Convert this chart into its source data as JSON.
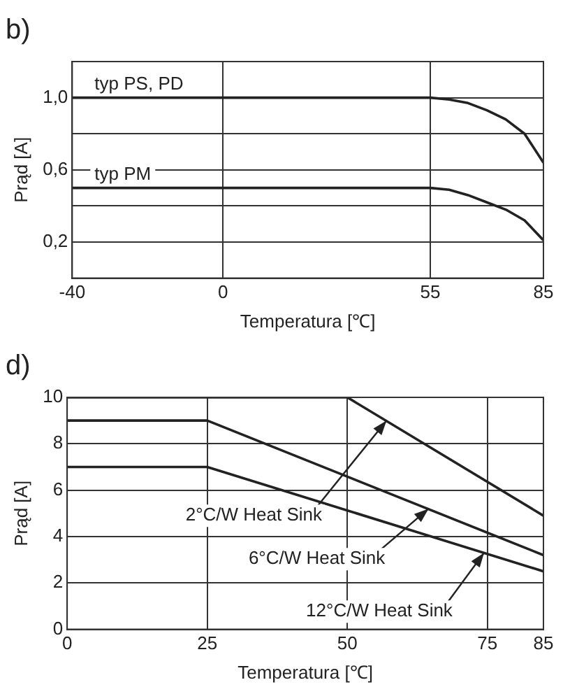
{
  "chart_data": [
    {
      "type": "line",
      "title": "b)",
      "xlabel": "Temperatura [℃]",
      "ylabel": "Prąd [A]",
      "xlim": [
        -40,
        85
      ],
      "xticks": [
        -40,
        0,
        55,
        85
      ],
      "ylim": [
        0,
        1.2
      ],
      "yticks": [
        {
          "value": 0.2,
          "label": "0,2"
        },
        {
          "value": 0.4,
          "label": null
        },
        {
          "value": 0.6,
          "label": "0,6"
        },
        {
          "value": 0.8,
          "label": null
        },
        {
          "value": 1.0,
          "label": "1,0"
        }
      ],
      "grid": true,
      "legend": false,
      "marker": "none",
      "line_style": "solid",
      "series": [
        {
          "name": "typ PS, PD",
          "color": "#222222",
          "x": [
            -40,
            55,
            60,
            65,
            70,
            75,
            80,
            85
          ],
          "values": [
            1.0,
            1.0,
            0.99,
            0.97,
            0.93,
            0.88,
            0.8,
            0.64
          ]
        },
        {
          "name": "typ PM",
          "color": "#222222",
          "x": [
            -40,
            55,
            60,
            65,
            70,
            75,
            80,
            85
          ],
          "values": [
            0.5,
            0.5,
            0.49,
            0.46,
            0.42,
            0.38,
            0.32,
            0.21
          ]
        }
      ]
    },
    {
      "type": "line",
      "title": "d)",
      "xlabel": "Temperatura [℃]",
      "ylabel": "Prąd [A]",
      "xlim": [
        0,
        85
      ],
      "xticks": [
        0,
        25,
        50,
        75,
        85
      ],
      "ylim": [
        0,
        10
      ],
      "yticks": [
        0,
        2,
        4,
        6,
        8,
        10
      ],
      "grid": true,
      "legend": false,
      "marker": "none",
      "line_style": "solid",
      "annotations": [
        {
          "text": "2°C/W Heat Sink",
          "x": 57,
          "y": 9.0
        },
        {
          "text": "6°C/W Heat Sink",
          "x": 64.5,
          "y": 5.2
        },
        {
          "text": "12°C/W Heat Sink",
          "x": 74.4,
          "y": 3.3
        }
      ],
      "series": [
        {
          "color": "#222222",
          "x": [
            0,
            50,
            85
          ],
          "values": [
            10,
            10,
            4.9
          ]
        },
        {
          "color": "#222222",
          "x": [
            0,
            25,
            85
          ],
          "values": [
            9,
            9,
            3.2
          ]
        },
        {
          "color": "#222222",
          "x": [
            0,
            25,
            85
          ],
          "values": [
            7,
            7,
            2.5
          ]
        }
      ]
    }
  ]
}
